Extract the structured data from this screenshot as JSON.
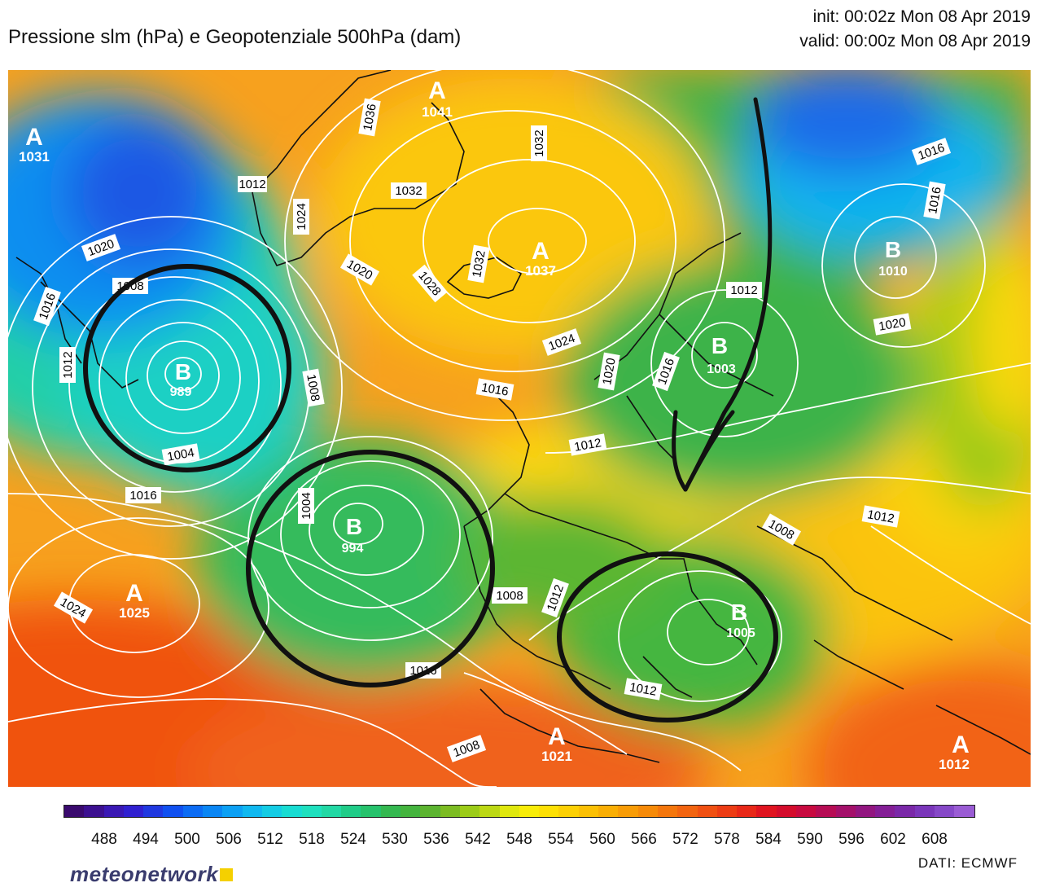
{
  "header": {
    "title": "Pressione slm (hPa) e Geopotenziale 500hPa (dam)",
    "init": "init: 00:02z Mon 08 Apr 2019",
    "valid": "valid: 00:00z Mon 08 Apr 2019"
  },
  "map": {
    "high_symbol": "A",
    "low_symbol": "B",
    "pressure_centers": [
      {
        "type": "A",
        "value": "1031"
      },
      {
        "type": "A",
        "value": "1041"
      },
      {
        "type": "A",
        "value": "1037"
      },
      {
        "type": "A",
        "value": "1025"
      },
      {
        "type": "A",
        "value": "1021"
      },
      {
        "type": "A",
        "value": "1012"
      },
      {
        "type": "B",
        "value": "989"
      },
      {
        "type": "B",
        "value": "994"
      },
      {
        "type": "B",
        "value": "1005"
      },
      {
        "type": "B",
        "value": "1010"
      },
      {
        "type": "B",
        "value": "1003"
      }
    ],
    "isobar_labels": [
      "1020",
      "1016",
      "1012",
      "1008",
      "1004",
      "1008",
      "1004",
      "1016",
      "1024",
      "1012",
      "1024",
      "1036",
      "1032",
      "1032",
      "1020",
      "1028",
      "1032",
      "1024",
      "1016",
      "1012",
      "1008",
      "1012",
      "1016",
      "1020",
      "1016",
      "1012",
      "1020",
      "1012",
      "1008",
      "1016",
      "1012",
      "1016",
      "1008",
      "1024",
      "1016",
      "1012",
      "1016",
      "1020",
      "1004"
    ]
  },
  "colorbar": {
    "ticks": [
      "488",
      "494",
      "500",
      "506",
      "512",
      "518",
      "524",
      "530",
      "536",
      "542",
      "548",
      "554",
      "560",
      "566",
      "572",
      "578",
      "584",
      "590",
      "596",
      "602",
      "608"
    ],
    "colors": [
      "#3a0a6e",
      "#3c1090",
      "#3a18b4",
      "#3020d0",
      "#2038e0",
      "#1050f0",
      "#0c6cf4",
      "#0a86f4",
      "#0ca0f4",
      "#10b8f0",
      "#14cce4",
      "#18dcd2",
      "#1ee0be",
      "#22d8a4",
      "#20cc88",
      "#26c26c",
      "#34b850",
      "#44b43e",
      "#5cb430",
      "#7cbc22",
      "#9ccc18",
      "#bcd814",
      "#e0e80e",
      "#f8ec08",
      "#fde004",
      "#fcd004",
      "#fbc004",
      "#f9ae04",
      "#f89c06",
      "#f68a08",
      "#f4760c",
      "#f26410",
      "#f05012",
      "#ec3c14",
      "#e82818",
      "#e01420",
      "#d40c2c",
      "#c80a40",
      "#b60c54",
      "#a4106a",
      "#921680",
      "#841e96",
      "#7a28a8",
      "#7a36ba",
      "#8648c8",
      "#9a5cd4"
    ]
  },
  "footer": {
    "logo": "meteonetwork",
    "source": "DATI:  ECMWF"
  }
}
